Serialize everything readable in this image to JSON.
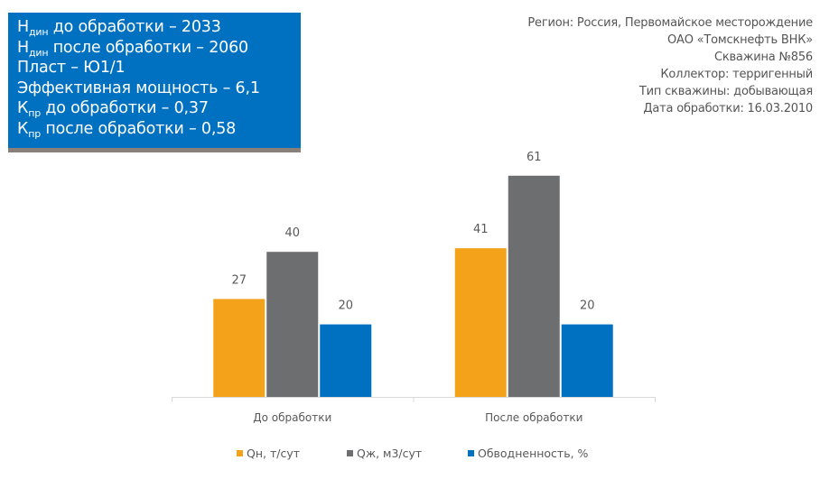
{
  "info_box": {
    "lines": [
      {
        "main": "Н",
        "sub": "дин",
        "rest": " до обработки – 2033"
      },
      {
        "main": "Н",
        "sub": "дин",
        "rest": " после обработки – 2060"
      },
      {
        "main": "Пласт – Ю1/1",
        "sub": "",
        "rest": ""
      },
      {
        "main": "Эффективная мощность – 6,1",
        "sub": "",
        "rest": ""
      },
      {
        "main": "К",
        "sub": "пр",
        "rest": " до обработки – 0,37"
      },
      {
        "main": "К",
        "sub": "пр",
        "rest": " после обработки – 0,58"
      }
    ]
  },
  "meta": [
    "Регион: Россия, Первомайское месторождение",
    "ОАО «Томскнефть ВНК»",
    "Скважина  №856",
    "Коллектор: терригенный",
    "Тип скважины: добывающая",
    "Дата обработки: 16.03.2010"
  ],
  "chart_data": {
    "type": "bar",
    "categories": [
      "До обработки",
      "После обработки"
    ],
    "series": [
      {
        "name": "Qн, т/сут",
        "color": "#f5a21b",
        "values": [
          27,
          41
        ]
      },
      {
        "name": "Qж, м3/сут",
        "color": "#6d6e70",
        "values": [
          40,
          61
        ]
      },
      {
        "name": "Обводненность, %",
        "color": "#0070c0",
        "values": [
          20,
          20
        ]
      }
    ],
    "ylim": [
      0,
      65
    ],
    "legend": "bottom",
    "grid": false
  }
}
